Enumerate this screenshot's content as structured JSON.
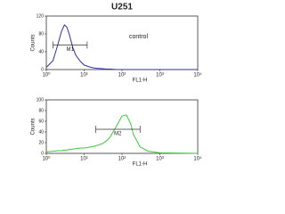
{
  "title": "U251",
  "chart_data": [
    {
      "type": "line",
      "xlabel": "FL1-H",
      "ylabel": "Counts",
      "log_x": true,
      "xlim": [
        1,
        10000
      ],
      "xticks": [
        {
          "value": 1,
          "label": "10⁰"
        },
        {
          "value": 10,
          "label": "10¹"
        },
        {
          "value": 100,
          "label": "10²"
        },
        {
          "value": 1000,
          "label": "10³"
        },
        {
          "value": 10000,
          "label": "10⁴"
        }
      ],
      "ylim": [
        0,
        120
      ],
      "yticks": [
        0,
        40,
        80,
        120
      ],
      "x": [
        1,
        1.5,
        2,
        2.5,
        3,
        3.5,
        4,
        5,
        6,
        8,
        10,
        15,
        20,
        30,
        40,
        50,
        70,
        100,
        130,
        170,
        200,
        300,
        500,
        1000,
        10000
      ],
      "series": [
        {
          "color": "#2b2fa8",
          "values": [
            5,
            20,
            55,
            85,
            100,
            95,
            80,
            50,
            32,
            18,
            10,
            5,
            3,
            2,
            1,
            1,
            0,
            0,
            0,
            0,
            0,
            0,
            0,
            0,
            0
          ]
        }
      ],
      "markers": [
        {
          "label": "M1",
          "range": [
            1.5,
            12
          ],
          "level": 55
        }
      ],
      "annotation": "control"
    },
    {
      "type": "line",
      "xlabel": "FL1-H",
      "ylabel": "Counts",
      "log_x": true,
      "xlim": [
        1,
        10000
      ],
      "xticks": [
        {
          "value": 1,
          "label": "10⁰"
        },
        {
          "value": 10,
          "label": "10¹"
        },
        {
          "value": 100,
          "label": "10²"
        },
        {
          "value": 1000,
          "label": "10³"
        },
        {
          "value": 10000,
          "label": "10⁴"
        }
      ],
      "ylim": [
        0,
        100
      ],
      "yticks": [
        0,
        20,
        40,
        60,
        80,
        100
      ],
      "x": [
        1,
        1.5,
        2,
        2.5,
        3,
        3.5,
        4,
        5,
        6,
        8,
        10,
        15,
        20,
        30,
        40,
        50,
        70,
        100,
        130,
        170,
        200,
        300,
        500,
        1000,
        10000
      ],
      "series": [
        {
          "color": "#3cc83c",
          "values": [
            3,
            4,
            5,
            5,
            6,
            6,
            7,
            8,
            9,
            10,
            10,
            12,
            14,
            18,
            24,
            32,
            50,
            70,
            72,
            55,
            35,
            12,
            4,
            1,
            0
          ]
        }
      ],
      "markers": [
        {
          "label": "M2",
          "range": [
            20,
            300
          ],
          "level": 45
        }
      ]
    }
  ]
}
